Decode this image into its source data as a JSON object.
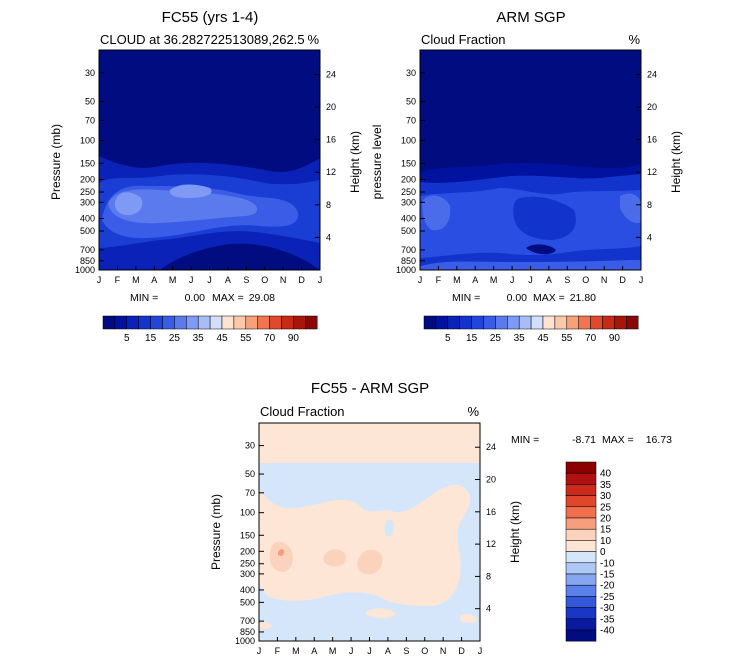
{
  "chart_data": [
    {
      "type": "contour",
      "title": "FC55 (yrs 1-4)",
      "subtitle_left": "CLOUD at 36.282722513089,262.5",
      "subtitle_right": "%",
      "xlabel": "",
      "ylabel": "Pressure (mb)",
      "ylabel_right": "Height (km)",
      "months": [
        "J",
        "F",
        "M",
        "A",
        "M",
        "J",
        "J",
        "A",
        "S",
        "O",
        "N",
        "D",
        "J"
      ],
      "pressure_ticks": [
        30,
        50,
        70,
        100,
        150,
        200,
        250,
        300,
        400,
        500,
        700,
        850,
        1000
      ],
      "height_ticks": [
        4,
        8,
        12,
        16,
        20,
        24
      ],
      "ylim": [
        1000,
        20
      ],
      "stats": {
        "min_label": "MIN =",
        "min": "0.00",
        "max_label": "MAX =",
        "max": "29.08"
      },
      "colorbar": {
        "labels": [
          "5",
          "15",
          "25",
          "35",
          "45",
          "55",
          "70",
          "90"
        ],
        "colors": [
          "#000c80",
          "#00129e",
          "#0a22b8",
          "#1234cc",
          "#2246dc",
          "#3a5ce6",
          "#5a7aee",
          "#7f9af4",
          "#a8bcf8",
          "#d2defb",
          "#fde4d2",
          "#fcc8aa",
          "#f7a07a",
          "#f07550",
          "#e04a2c",
          "#c82a14",
          "#a8160a",
          "#880808"
        ]
      }
    },
    {
      "type": "contour",
      "title": "ARM SGP",
      "subtitle_left": "Cloud Fraction",
      "subtitle_right": "%",
      "ylabel": "pressure level",
      "ylabel_right": "Height (km)",
      "months": [
        "J",
        "F",
        "M",
        "A",
        "M",
        "J",
        "J",
        "A",
        "S",
        "O",
        "N",
        "D",
        "J"
      ],
      "pressure_ticks": [
        30,
        50,
        70,
        100,
        150,
        200,
        250,
        300,
        400,
        500,
        700,
        850,
        1000
      ],
      "height_ticks": [
        4,
        8,
        12,
        16,
        20,
        24
      ],
      "ylim": [
        1000,
        20
      ],
      "stats": {
        "min_label": "MIN =",
        "min": "0.00",
        "max_label": "MAX =",
        "max": "21.80"
      },
      "colorbar": {
        "labels": [
          "5",
          "15",
          "25",
          "35",
          "45",
          "55",
          "70",
          "90"
        ]
      }
    },
    {
      "type": "contour",
      "title": "FC55 - ARM SGP",
      "subtitle_left": "Cloud Fraction",
      "subtitle_right": "%",
      "ylabel": "Pressure (mb)",
      "ylabel_right": "Height (km)",
      "months": [
        "J",
        "F",
        "M",
        "A",
        "M",
        "J",
        "J",
        "A",
        "S",
        "O",
        "N",
        "D",
        "J"
      ],
      "pressure_ticks": [
        30,
        50,
        70,
        100,
        150,
        200,
        250,
        300,
        400,
        500,
        700,
        850,
        1000
      ],
      "height_ticks": [
        4,
        8,
        12,
        16,
        20,
        24
      ],
      "ylim": [
        1000,
        20
      ],
      "stats": {
        "min_label": "MIN =",
        "min": "-8.71",
        "max_label": "MAX =",
        "max": "16.73"
      },
      "colorbar": {
        "labels": [
          "40",
          "35",
          "30",
          "25",
          "20",
          "15",
          "10",
          "0",
          "-10",
          "-15",
          "-20",
          "-25",
          "-30",
          "-35",
          "-40"
        ],
        "colors": [
          "#8b0000",
          "#b01212",
          "#cc2a1a",
          "#e0462c",
          "#f0704e",
          "#f79e7c",
          "#fbd2bc",
          "#fde6d6",
          "#d6e6fa",
          "#aec8f6",
          "#86a6f0",
          "#5a80ea",
          "#3458dc",
          "#1a36c4",
          "#0a1aa0",
          "#000c80"
        ]
      }
    }
  ]
}
